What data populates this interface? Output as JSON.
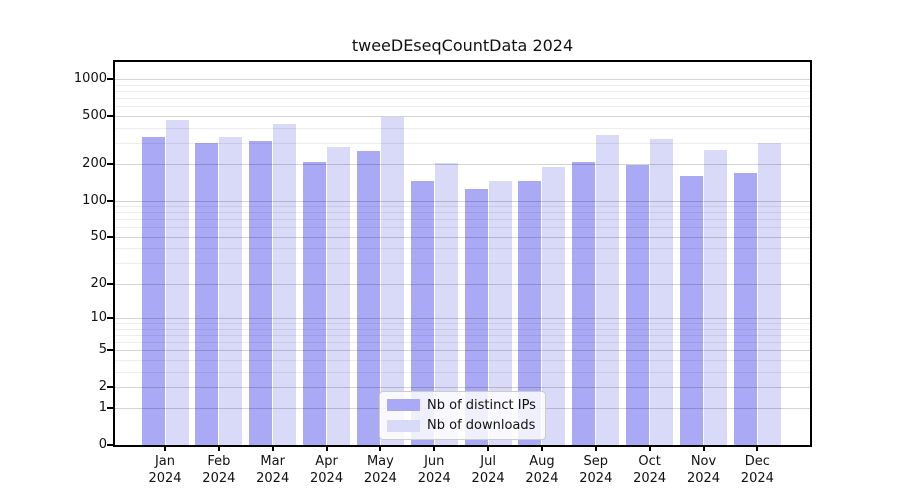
{
  "chart_data": {
    "type": "bar",
    "title": "tweeDEseqCountData 2024",
    "categories": [
      "Jan",
      "Feb",
      "Mar",
      "Apr",
      "May",
      "Jun",
      "Jul",
      "Aug",
      "Sep",
      "Oct",
      "Nov",
      "Dec"
    ],
    "category_year": "2024",
    "series": [
      {
        "name": "Nb of distinct IPs",
        "color": "#a9a9f5",
        "values": [
          335,
          300,
          310,
          210,
          255,
          145,
          125,
          145,
          210,
          195,
          160,
          170
        ]
      },
      {
        "name": "Nb of downloads",
        "color": "#d9d9f8",
        "values": [
          460,
          335,
          430,
          275,
          490,
          205,
          145,
          190,
          350,
          320,
          260,
          300
        ]
      }
    ],
    "yscale": "log1p",
    "ylim": [
      0,
      1380
    ],
    "yticks": [
      0,
      1,
      2,
      5,
      10,
      20,
      50,
      100,
      200,
      500,
      1000
    ],
    "minor_gridlines": [
      3,
      4,
      6,
      7,
      8,
      9,
      30,
      40,
      60,
      70,
      80,
      90,
      300,
      400,
      600,
      700,
      800,
      900
    ],
    "grid": true,
    "legend_position": "bottom-center-inside"
  },
  "colors": {
    "bar_distinct_ips": "#a9a9f5",
    "bar_downloads": "#d9d9f8",
    "grid_major": "#c8c8c8",
    "grid_minor": "#ececec",
    "axis": "#000000",
    "background": "#ffffff"
  }
}
